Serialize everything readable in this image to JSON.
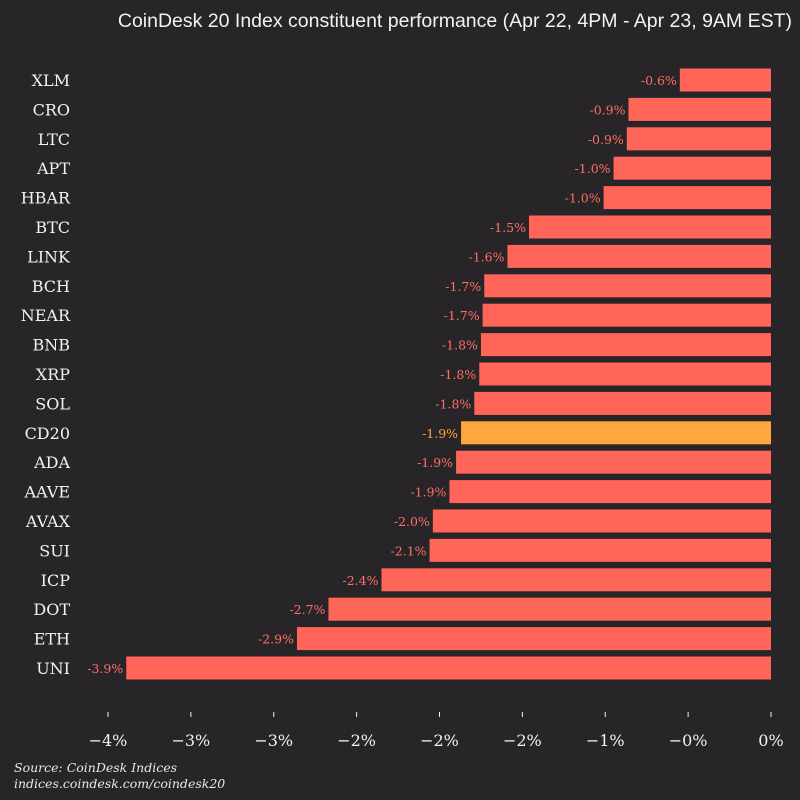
{
  "chart_data": {
    "type": "bar",
    "orientation": "horizontal",
    "title": "CoinDesk 20 Index constituent performance (Apr 22, 4PM - Apr 23, 9AM EST)",
    "categories": [
      "XLM",
      "CRO",
      "LTC",
      "APT",
      "HBAR",
      "BTC",
      "LINK",
      "BCH",
      "NEAR",
      "BNB",
      "XRP",
      "SOL",
      "CD20",
      "ADA",
      "AAVE",
      "AVAX",
      "SUI",
      "ICP",
      "DOT",
      "ETH",
      "UNI"
    ],
    "values": [
      -0.55,
      -0.86,
      -0.87,
      -0.95,
      -1.01,
      -1.46,
      -1.59,
      -1.73,
      -1.74,
      -1.75,
      -1.76,
      -1.79,
      -1.87,
      -1.9,
      -1.94,
      -2.04,
      -2.06,
      -2.35,
      -2.67,
      -2.86,
      -3.89
    ],
    "labels": [
      "-0.6%",
      "-0.9%",
      "-0.9%",
      "-1.0%",
      "-1.0%",
      "-1.5%",
      "-1.6%",
      "-1.7%",
      "-1.7%",
      "-1.8%",
      "-1.8%",
      "-1.8%",
      "-1.9%",
      "-1.9%",
      "-1.9%",
      "-2.0%",
      "-2.1%",
      "-2.4%",
      "-2.7%",
      "-2.9%",
      "-3.9%"
    ],
    "highlight": "CD20",
    "xlim": [
      -4,
      0
    ],
    "xticks": [
      -4,
      -3.5,
      -3,
      -2.5,
      -2,
      -1.5,
      -1,
      -0.5,
      0
    ],
    "xtick_labels": [
      "−4%",
      "−3%",
      "−3%",
      "−2%",
      "−2%",
      "−2%",
      "−1%",
      "−0%",
      "0%"
    ],
    "grid": false,
    "colors": {
      "bar": "#ff6659",
      "highlight": "#ffa63f",
      "background": "#272528",
      "label": "#ff6f61"
    }
  },
  "source": {
    "line1": "Source: CoinDesk Indices",
    "line2": "indices.coindesk.com/coindesk20"
  }
}
